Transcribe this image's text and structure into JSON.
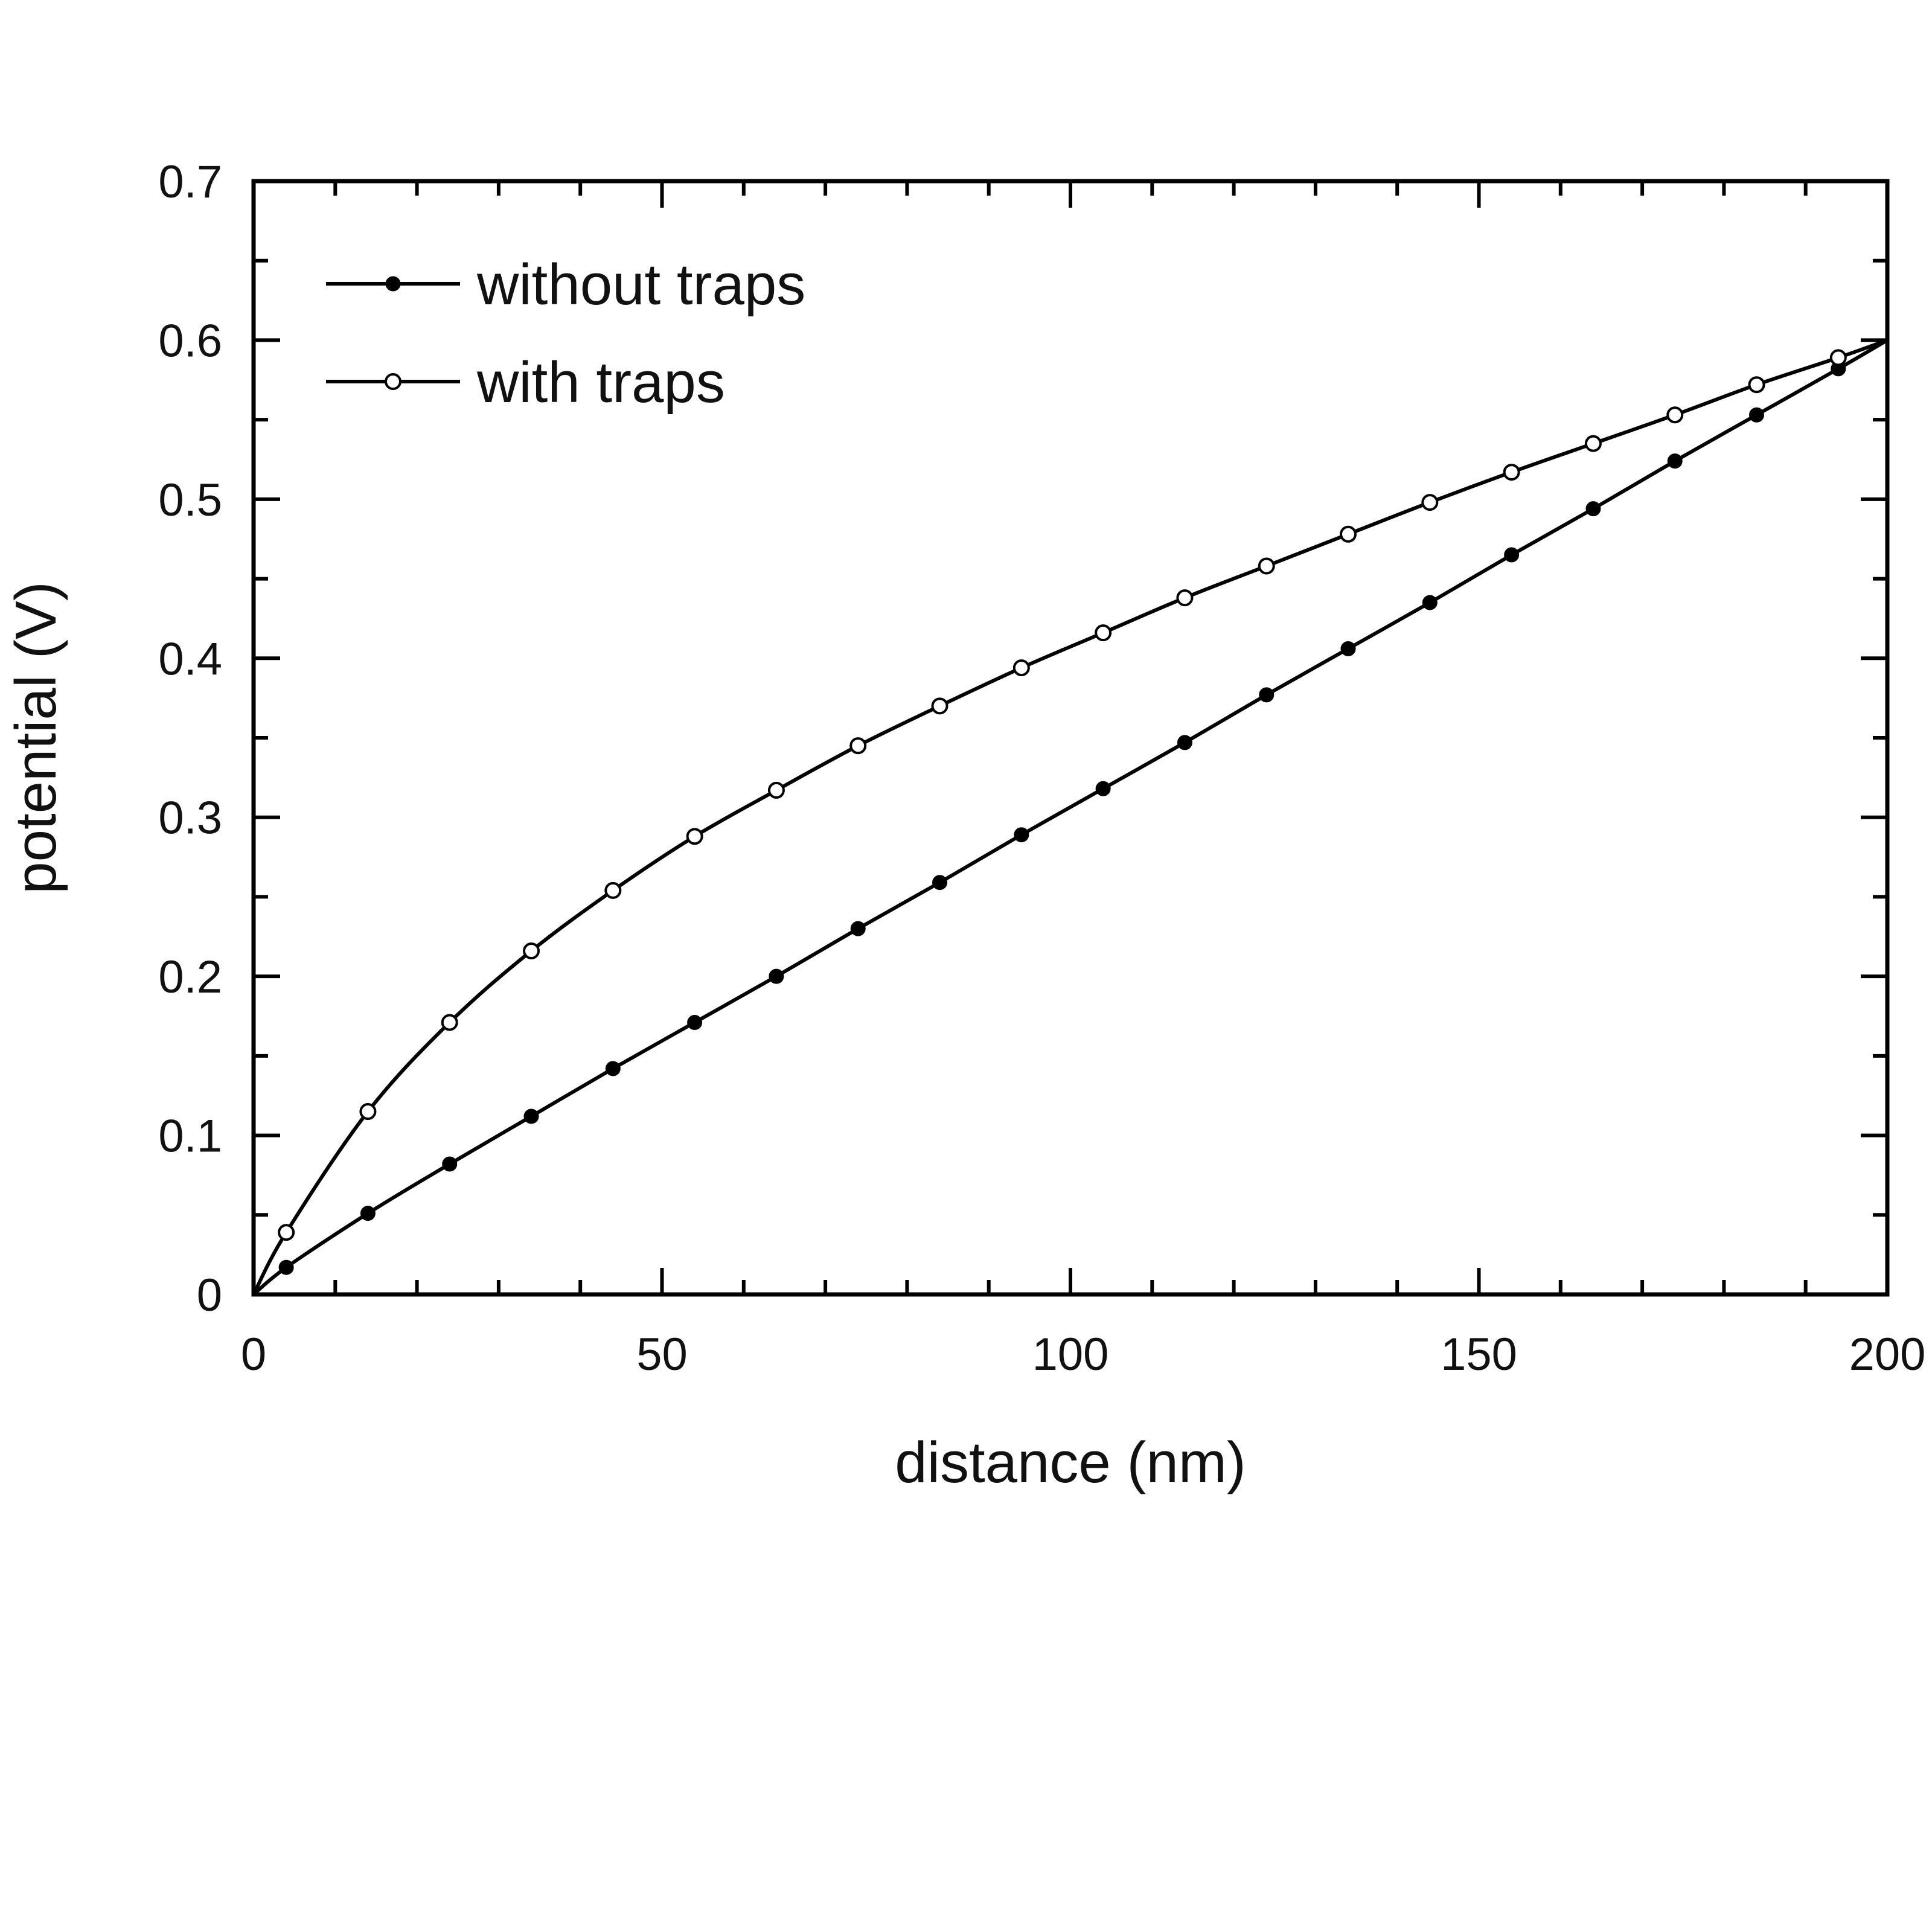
{
  "chart_data": {
    "type": "line",
    "title": "",
    "xlabel": "distance (nm)",
    "ylabel": "potential (V)",
    "xlim": [
      0,
      200
    ],
    "ylim": [
      0,
      0.7
    ],
    "xticks": [
      0,
      50,
      100,
      150,
      200
    ],
    "yticks": [
      0,
      0.1,
      0.2,
      0.3,
      0.4,
      0.5,
      0.6,
      0.7
    ],
    "xtick_labels": [
      "0",
      "50",
      "100",
      "150",
      "200"
    ],
    "ytick_labels": [
      "0",
      "0.1",
      "0.2",
      "0.3",
      "0.4",
      "0.5",
      "0.6",
      "0.7"
    ],
    "grid": false,
    "legend_position": "top-left",
    "series": [
      {
        "name": "without traps",
        "marker": "filled-circle",
        "color": "#000000",
        "x": [
          4,
          14,
          24,
          34,
          44,
          54,
          64,
          74,
          84,
          94,
          104,
          114,
          124,
          134,
          144,
          154,
          164,
          174,
          184,
          194
        ],
        "y": [
          0.017,
          0.051,
          0.082,
          0.112,
          0.142,
          0.171,
          0.2,
          0.23,
          0.259,
          0.289,
          0.318,
          0.347,
          0.377,
          0.406,
          0.435,
          0.465,
          0.494,
          0.524,
          0.553,
          0.582
        ]
      },
      {
        "name": "with traps",
        "marker": "open-circle",
        "color": "#000000",
        "x": [
          4,
          14,
          24,
          34,
          44,
          54,
          64,
          74,
          84,
          94,
          104,
          114,
          124,
          134,
          144,
          154,
          164,
          174,
          184,
          194
        ],
        "y": [
          0.039,
          0.115,
          0.171,
          0.216,
          0.254,
          0.288,
          0.317,
          0.345,
          0.37,
          0.394,
          0.416,
          0.438,
          0.458,
          0.478,
          0.498,
          0.517,
          0.535,
          0.553,
          0.572,
          0.589
        ]
      }
    ]
  }
}
